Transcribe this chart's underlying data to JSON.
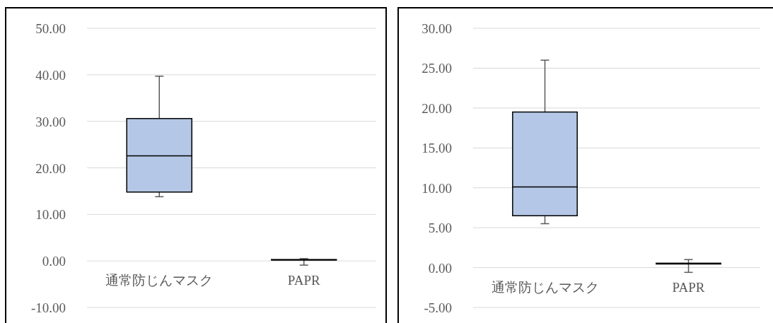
{
  "chart_data": [
    {
      "type": "box",
      "categories": [
        "通常防じんマスク",
        "PAPR"
      ],
      "color": "#b4c7e7",
      "boxes": [
        {
          "low": 13.8,
          "q1": 14.8,
          "median": 22.6,
          "q3": 30.6,
          "high": 39.7
        },
        {
          "low": -0.9,
          "q1": 0.2,
          "median": 0.2,
          "q3": 0.3,
          "high": 0.5
        }
      ],
      "ylim": [
        -10,
        50
      ],
      "yticks": [
        {
          "value": -10,
          "label": "-10.00"
        },
        {
          "value": 0,
          "label": "0.00"
        },
        {
          "value": 10,
          "label": "10.00"
        },
        {
          "value": 20,
          "label": "20.00"
        },
        {
          "value": 30,
          "label": "30.00"
        },
        {
          "value": 40,
          "label": "40.00"
        },
        {
          "value": 50,
          "label": "50.00"
        }
      ],
      "grid": "y"
    },
    {
      "type": "box",
      "categories": [
        "通常防じんマスク",
        "PAPR"
      ],
      "color": "#b4c7e7",
      "boxes": [
        {
          "low": 5.5,
          "q1": 6.5,
          "median": 10.1,
          "q3": 19.5,
          "high": 26.0
        },
        {
          "low": -0.6,
          "q1": 0.45,
          "median": 0.5,
          "q3": 0.55,
          "high": 1.0
        }
      ],
      "ylim": [
        -5,
        30
      ],
      "yticks": [
        {
          "value": -5,
          "label": "-5.00"
        },
        {
          "value": 0,
          "label": "0.00"
        },
        {
          "value": 5,
          "label": "5.00"
        },
        {
          "value": 10,
          "label": "10.00"
        },
        {
          "value": 15,
          "label": "15.00"
        },
        {
          "value": 20,
          "label": "20.00"
        },
        {
          "value": 25,
          "label": "25.00"
        },
        {
          "value": 30,
          "label": "30.00"
        }
      ],
      "grid": "y"
    }
  ]
}
